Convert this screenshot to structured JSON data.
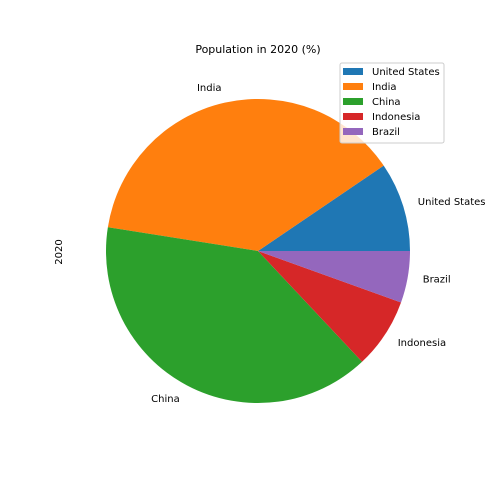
{
  "chart_data": {
    "type": "pie",
    "title": "Population in 2020 (%)",
    "ylabel": "2020",
    "categories": [
      "United States",
      "India",
      "China",
      "Indonesia",
      "Brazil"
    ],
    "values": [
      9.5,
      38.0,
      39.5,
      7.5,
      5.5
    ],
    "colors": [
      "#1f77b4",
      "#ff7f0e",
      "#2ca02c",
      "#d62728",
      "#9467bd"
    ],
    "legend_placement": "top-right"
  }
}
